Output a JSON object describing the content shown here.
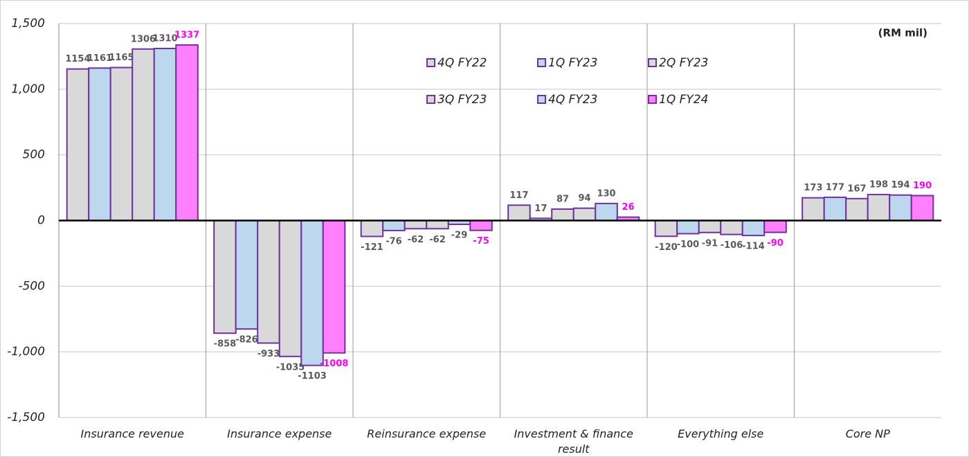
{
  "chart_data": {
    "type": "bar",
    "annotation": "(RM mil)",
    "categories": [
      "Insurance revenue",
      "Insurance expense",
      "Reinsurance expense",
      "Investment & finance result",
      "Everything else",
      "Core NP"
    ],
    "series": [
      {
        "name": "4Q FY22",
        "color": "#d9d9d9",
        "values": [
          1154,
          -858,
          -121,
          117,
          -120,
          173
        ]
      },
      {
        "name": "1Q FY23",
        "color": "#bdd7ee",
        "values": [
          1161,
          -826,
          -76,
          17,
          -100,
          177
        ]
      },
      {
        "name": "2Q FY23",
        "color": "#d9d9d9",
        "values": [
          1165,
          -933,
          -62,
          87,
          -91,
          167
        ]
      },
      {
        "name": "3Q FY23",
        "color": "#d9d9d9",
        "values": [
          1306,
          -1035,
          -62,
          94,
          -106,
          198
        ]
      },
      {
        "name": "4Q FY23",
        "color": "#bdd7ee",
        "values": [
          1310,
          -1103,
          -29,
          130,
          -114,
          194
        ]
      },
      {
        "name": "1Q FY24",
        "color": "#ff80ff",
        "values": [
          1337,
          -1008,
          -75,
          26,
          -90,
          190
        ]
      }
    ],
    "bar_border_color": "#7030a0",
    "ylim": [
      -1500,
      1500
    ],
    "yticks": [
      {
        "value": -1500,
        "label": "-1,500"
      },
      {
        "value": -1000,
        "label": "-1,000"
      },
      -500,
      0,
      500,
      {
        "value": 1000,
        "label": "1,000"
      },
      {
        "value": 1500,
        "label": "1,500"
      }
    ],
    "grid": true,
    "legend": "top-center"
  }
}
